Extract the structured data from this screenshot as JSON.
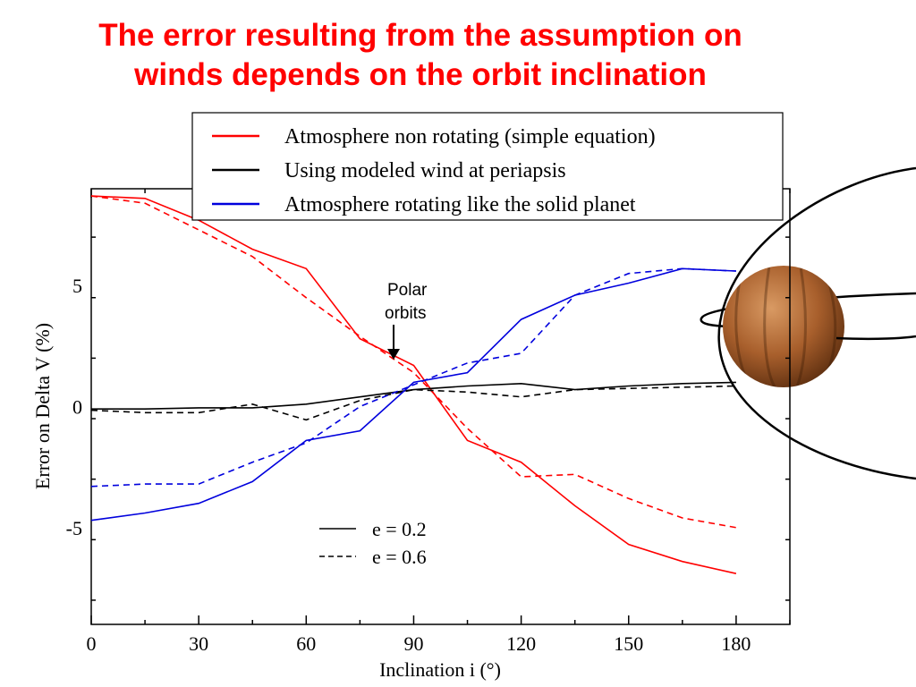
{
  "slide": {
    "title_line1": "The error resulting from the assumption on",
    "title_line2": "winds depends on the orbit inclination"
  },
  "chart_data": {
    "type": "line",
    "xlabel": "Inclination i (°)",
    "ylabel": "Error on Delta V (%)",
    "xlim": [
      0,
      195
    ],
    "ylim": [
      -9,
      9
    ],
    "xticks": [
      0,
      30,
      60,
      90,
      120,
      150,
      180
    ],
    "yticks": [
      -5,
      0,
      5
    ],
    "grid": false,
    "series": [
      {
        "name": "Atmosphere non rotating (simple equation)",
        "e": "e = 0.2",
        "color": "#ff0000",
        "dash": "solid",
        "x": [
          0,
          15,
          30,
          45,
          60,
          75,
          90,
          105,
          120,
          135,
          150,
          165,
          180
        ],
        "y": [
          8.7,
          8.6,
          7.7,
          6.5,
          5.7,
          2.8,
          1.7,
          -1.4,
          -2.3,
          -4.1,
          -5.7,
          -6.4,
          -6.9
        ]
      },
      {
        "name": "Atmosphere non rotating (simple equation)",
        "e": "e = 0.6",
        "color": "#ff0000",
        "dash": "dashed",
        "x": [
          0,
          15,
          30,
          45,
          60,
          75,
          90,
          105,
          120,
          135,
          150,
          165,
          180
        ],
        "y": [
          8.7,
          8.4,
          7.3,
          6.2,
          4.5,
          2.9,
          1.4,
          -0.9,
          -2.9,
          -2.8,
          -3.8,
          -4.6,
          -5.0
        ]
      },
      {
        "name": "Using modeled wind at periapsis",
        "e": "e = 0.2",
        "color": "#000000",
        "dash": "solid",
        "x": [
          0,
          15,
          30,
          45,
          60,
          75,
          90,
          105,
          120,
          135,
          150,
          165,
          180
        ],
        "y": [
          -0.1,
          -0.1,
          -0.05,
          -0.05,
          0.1,
          0.4,
          0.7,
          0.85,
          0.95,
          0.7,
          0.85,
          0.95,
          1.0
        ]
      },
      {
        "name": "Using modeled wind at periapsis",
        "e": "e = 0.6",
        "color": "#000000",
        "dash": "dashed",
        "x": [
          0,
          15,
          30,
          45,
          60,
          75,
          90,
          105,
          120,
          135,
          150,
          165,
          180
        ],
        "y": [
          -0.15,
          -0.25,
          -0.25,
          0.1,
          -0.55,
          0.25,
          0.7,
          0.6,
          0.4,
          0.7,
          0.75,
          0.8,
          0.85
        ]
      },
      {
        "name": "Atmosphere rotating like the solid planet",
        "e": "e = 0.2",
        "color": "#0000dd",
        "dash": "solid",
        "x": [
          0,
          15,
          30,
          45,
          60,
          75,
          90,
          105,
          120,
          135,
          150,
          165,
          180
        ],
        "y": [
          -4.7,
          -4.4,
          -4.0,
          -3.1,
          -1.4,
          -1.0,
          1.0,
          1.4,
          3.6,
          4.6,
          5.1,
          5.7,
          5.6
        ]
      },
      {
        "name": "Atmosphere rotating like the solid planet",
        "e": "e = 0.6",
        "color": "#0000dd",
        "dash": "dashed",
        "x": [
          0,
          15,
          30,
          45,
          60,
          75,
          90,
          105,
          120,
          135,
          150,
          165,
          180
        ],
        "y": [
          -3.3,
          -3.2,
          -3.2,
          -2.3,
          -1.5,
          0.0,
          0.9,
          1.8,
          2.2,
          4.6,
          5.5,
          5.7,
          5.6
        ]
      }
    ],
    "legend": {
      "placement": "top",
      "entries": [
        {
          "label": "Atmosphere non rotating (simple equation)",
          "color": "#ff0000"
        },
        {
          "label": "Using modeled wind at periapsis",
          "color": "#000000"
        },
        {
          "label": "Atmosphere rotating like the solid planet",
          "color": "#0000dd"
        }
      ]
    },
    "style_legend": {
      "placement": "bottom-center",
      "entries": [
        {
          "label": "e = 0.2",
          "dash": "solid"
        },
        {
          "label": "e = 0.6",
          "dash": "dashed"
        }
      ]
    },
    "annotation": {
      "line1": "Polar",
      "line2": "orbits",
      "x": 90
    }
  },
  "illustration": {
    "planet_color": "#b36a33",
    "orbit_color": "#000000"
  }
}
